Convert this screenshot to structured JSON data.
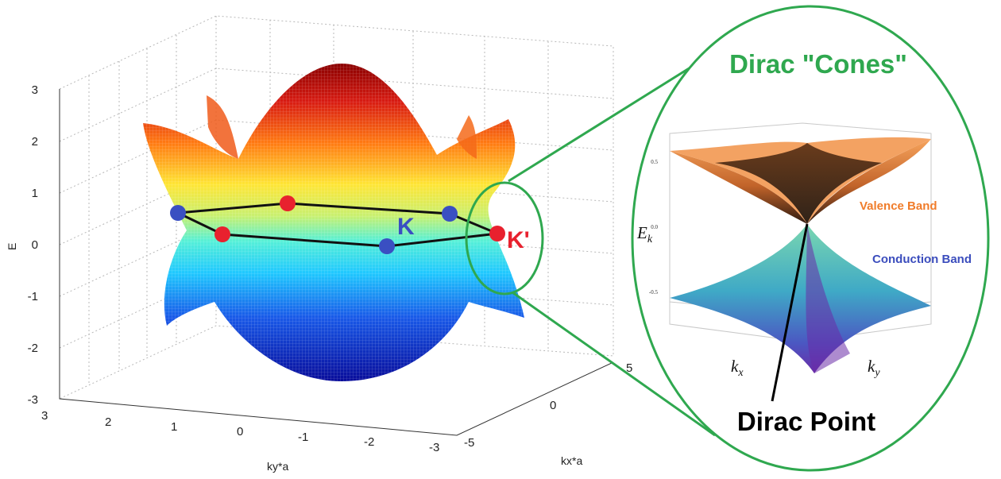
{
  "chart_data": [
    {
      "type": "surface",
      "zlabel": "E",
      "xlabel": "ky*a",
      "ylabel": "kx*a",
      "z_ticks": [
        "3",
        "2",
        "1",
        "0",
        "-1",
        "-2",
        "-3"
      ],
      "ky_ticks": [
        "3",
        "2",
        "1",
        "0",
        "-1",
        "-2",
        "-3"
      ],
      "kx_ticks": [
        "5",
        "0",
        "-5"
      ],
      "zlim": [
        -3,
        3
      ],
      "kylim": [
        -3,
        3
      ],
      "kxlim": [
        -5,
        5
      ],
      "points": [
        {
          "label": "K",
          "color": "#3a4fc2"
        },
        {
          "label": "K'",
          "color": "#e8212e"
        }
      ],
      "colormap": "jet",
      "grid": true
    },
    {
      "type": "surface",
      "title": "Dirac \"Cones\"",
      "zlabel": "E",
      "zlabel_sub": "k",
      "xlabel": "k",
      "xlabel_sub": "x",
      "ylabel": "k",
      "ylabel_sub": "y",
      "z_ticks": [
        "0.5",
        "0.0",
        "-0.5"
      ],
      "valence_label": "Valence Band",
      "valence_color": "#f07c2a",
      "conduction_label": "Conduction Band",
      "conduction_color": "#3b4dbd",
      "dirac_point_label": "Dirac Point"
    }
  ],
  "colors": {
    "highlight": "#2fa84f"
  }
}
